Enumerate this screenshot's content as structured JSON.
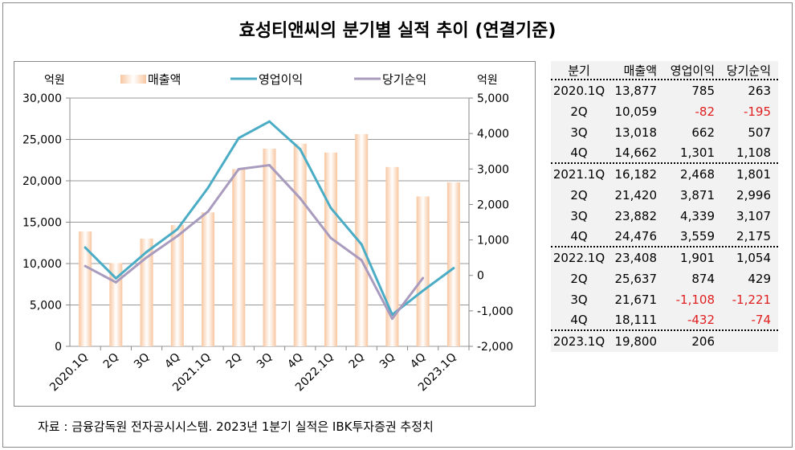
{
  "title": "효성티앤씨의 분기별 실적 추이 (연결기준)",
  "source": "자료 : 금융감독원 전자공시시스템. 2023년 1분기 실적은 IBK투자증권 추정치",
  "chart_data": {
    "type": "bar+line",
    "left_axis_unit": "억원",
    "right_axis_unit": "억원",
    "ylim_left": [
      0,
      30000
    ],
    "yticks_left": [
      "30,000",
      "25,000",
      "20,000",
      "15,000",
      "10,000",
      "5,000",
      "0"
    ],
    "ylim_right": [
      -2000,
      5000
    ],
    "yticks_right": [
      "5,000",
      "4,000",
      "3,000",
      "2,000",
      "1,000",
      "0",
      "-1,000",
      "-2,000"
    ],
    "categories": [
      "2020.1Q",
      "2Q",
      "3Q",
      "4Q",
      "2021.1Q",
      "2Q",
      "3Q",
      "4Q",
      "2022.1Q",
      "2Q",
      "3Q",
      "4Q",
      "2023.1Q"
    ],
    "legend_position": "top",
    "grid": true,
    "series": [
      {
        "name": "매출액",
        "type": "bar",
        "axis": "left",
        "color": "#f8c9a4",
        "values": [
          13877,
          10059,
          13018,
          14662,
          16182,
          21420,
          23882,
          24476,
          23408,
          25637,
          21671,
          18111,
          19800
        ]
      },
      {
        "name": "영업이익",
        "type": "line",
        "axis": "right",
        "color": "#4bacc6",
        "values": [
          785,
          -82,
          662,
          1301,
          2468,
          3871,
          4339,
          3559,
          1901,
          874,
          -1108,
          -432,
          206
        ]
      },
      {
        "name": "당기순익",
        "type": "line",
        "axis": "right",
        "color": "#a99bbd",
        "values": [
          263,
          -195,
          507,
          1108,
          1801,
          2996,
          3107,
          2175,
          1054,
          429,
          -1221,
          -74,
          null
        ]
      }
    ]
  },
  "table": {
    "headers": [
      "분기",
      "매출액",
      "영업이익",
      "당기순익"
    ],
    "rows": [
      [
        "2020.1Q",
        "13,877",
        "785",
        "263"
      ],
      [
        "2Q",
        "10,059",
        "-82",
        "-195"
      ],
      [
        "3Q",
        "13,018",
        "662",
        "507"
      ],
      [
        "4Q",
        "14,662",
        "1,301",
        "1,108"
      ],
      [
        "2021.1Q",
        "16,182",
        "2,468",
        "1,801"
      ],
      [
        "2Q",
        "21,420",
        "3,871",
        "2,996"
      ],
      [
        "3Q",
        "23,882",
        "4,339",
        "3,107"
      ],
      [
        "4Q",
        "24,476",
        "3,559",
        "2,175"
      ],
      [
        "2022.1Q",
        "23,408",
        "1,901",
        "1,054"
      ],
      [
        "2Q",
        "25,637",
        "874",
        "429"
      ],
      [
        "3Q",
        "21,671",
        "-1,108",
        "-1,221"
      ],
      [
        "4Q",
        "18,111",
        "-432",
        "-74"
      ],
      [
        "2023.1Q",
        "19,800",
        "206",
        ""
      ]
    ],
    "negative_color": "#e02020"
  }
}
